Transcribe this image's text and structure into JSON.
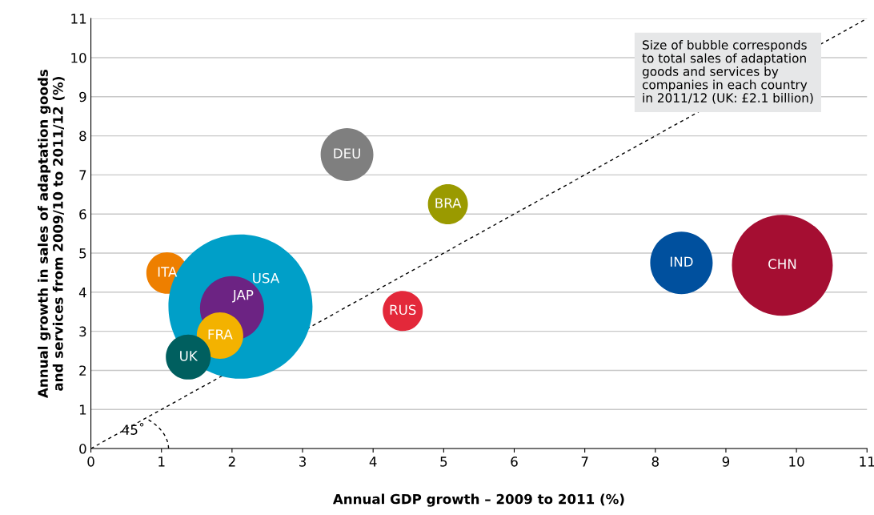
{
  "chart_data": {
    "type": "bubble",
    "xlabel": "Annual GDP growth – 2009 to 2011 (%)",
    "ylabel": "Annual growth in sales of adaptation goods\nand services from 2009/10 to 2011/12 (%)",
    "xlim": [
      0,
      11
    ],
    "ylim": [
      0,
      11
    ],
    "xticks": [
      0,
      1,
      2,
      3,
      4,
      5,
      6,
      7,
      8,
      9,
      10,
      11
    ],
    "yticks": [
      0,
      1,
      2,
      3,
      4,
      5,
      6,
      7,
      8,
      9,
      10,
      11
    ],
    "grid": "y",
    "series": [
      {
        "name": "DEU",
        "color": "#7f7f7f",
        "x": [
          3.63
        ],
        "values": [
          7.52
        ],
        "sizes": [
          0.134
        ]
      },
      {
        "name": "BRA",
        "color": "#9a9a00",
        "x": [
          5.06
        ],
        "values": [
          6.25
        ],
        "sizes": [
          0.077
        ]
      },
      {
        "name": "ITA",
        "color": "#ee7f00",
        "x": [
          1.08
        ],
        "values": [
          4.49
        ],
        "sizes": [
          0.083
        ]
      },
      {
        "name": "USA",
        "color": "#009fc8",
        "x": [
          2.12
        ],
        "values": [
          3.63
        ],
        "sizes": [
          1
        ]
      },
      {
        "name": "JAP",
        "color": "#6c2383",
        "x": [
          2.0
        ],
        "values": [
          3.59
        ],
        "sizes": [
          0.198
        ]
      },
      {
        "name": "FRA",
        "color": "#f3b200",
        "x": [
          1.83
        ],
        "values": [
          2.89
        ],
        "sizes": [
          0.104
        ]
      },
      {
        "name": "UK",
        "color": "#005f5f",
        "x": [
          1.38
        ],
        "values": [
          2.34
        ],
        "sizes": [
          0.097
        ]
      },
      {
        "name": "RUS",
        "color": "#e3283a",
        "x": [
          4.42
        ],
        "values": [
          3.52
        ],
        "sizes": [
          0.077
        ]
      },
      {
        "name": "IND",
        "color": "#00509e",
        "x": [
          8.37
        ],
        "values": [
          4.75
        ],
        "sizes": [
          0.188
        ]
      },
      {
        "name": "CHN",
        "color": "#a50e32",
        "x": [
          9.8
        ],
        "values": [
          4.69
        ],
        "sizes": [
          0.49
        ]
      },
      {
        "type": "line",
        "color": "#000000",
        "line_style": "dashed",
        "x": [
          0,
          11
        ],
        "values": [
          0,
          11
        ]
      }
    ],
    "annotations": [
      "Size of bubble corresponds\nto total sales of adaptation\ngoods and services by\ncompanies in each country\nin 2011/12 (UK: £2.1 billion)",
      "45˚"
    ]
  }
}
